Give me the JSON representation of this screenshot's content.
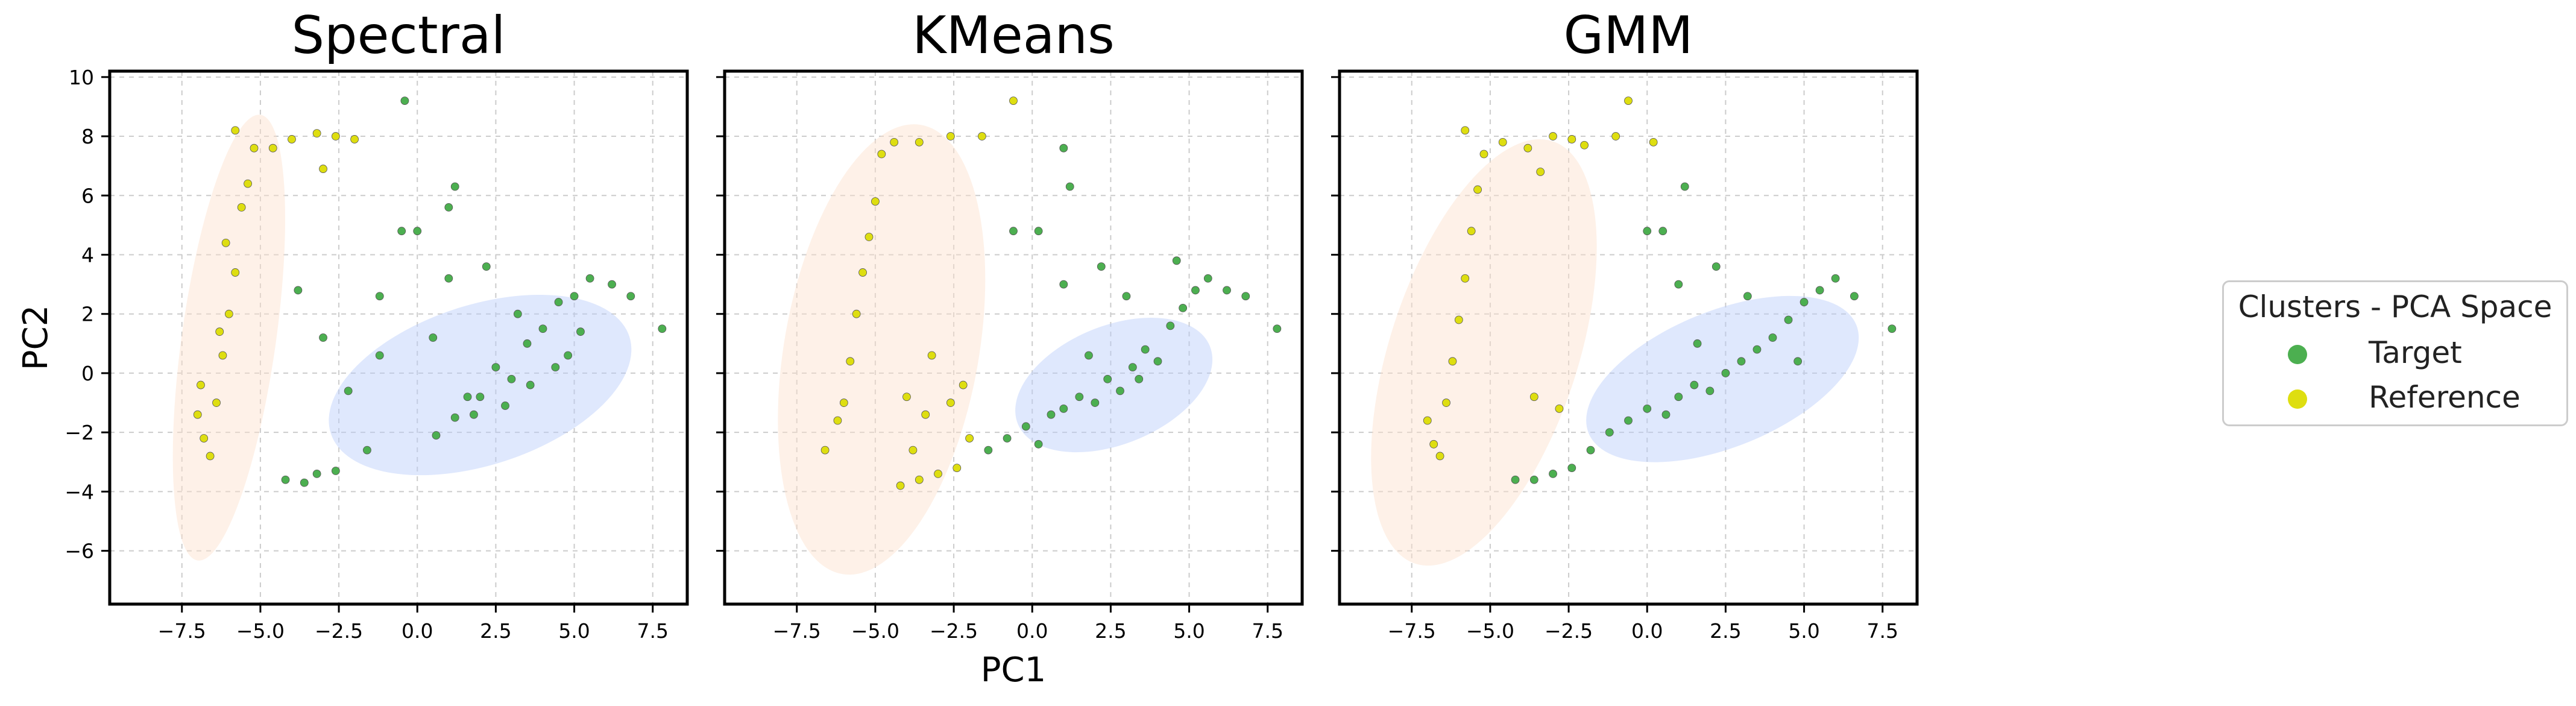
{
  "figure": {
    "xlabel": "PC1",
    "ylabel": "PC2",
    "colors": {
      "Target": "#4caf50",
      "Reference": "#dede10"
    },
    "ellipse_colors": {
      "Target": "#b8cdfa",
      "Reference": "#fde1cb"
    }
  },
  "legend": {
    "title": "Clusters - PCA Space",
    "entries": [
      {
        "label": "Target",
        "color": "#4caf50"
      },
      {
        "label": "Reference",
        "color": "#dede10"
      }
    ]
  },
  "chart_data": [
    {
      "type": "scatter",
      "title": "Spectral",
      "xlim": [
        -9.8,
        8.6
      ],
      "ylim": [
        -7.8,
        10.2
      ],
      "xticks": [
        "−7.5",
        "−5.0",
        "−2.5",
        "0.0",
        "2.5",
        "5.0",
        "7.5"
      ],
      "yticks": [
        "−6",
        "−4",
        "−2",
        "0",
        "2",
        "4",
        "6",
        "8",
        "10"
      ],
      "grid": true,
      "ellipses": [
        {
          "cluster": "Reference",
          "center": [
            -6.0,
            1.2
          ],
          "width": 3.0,
          "height": 15.2,
          "angle": -8
        },
        {
          "cluster": "Target",
          "center": [
            2.0,
            -0.4
          ],
          "width": 10.0,
          "height": 5.4,
          "angle": 18
        }
      ],
      "series": [
        {
          "name": "Target",
          "points": [
            [
              -4.2,
              -3.6
            ],
            [
              -3.6,
              -3.7
            ],
            [
              -3.2,
              -3.4
            ],
            [
              -2.6,
              -3.3
            ],
            [
              -3.8,
              2.8
            ],
            [
              -3.0,
              1.2
            ],
            [
              -2.2,
              -0.6
            ],
            [
              -1.6,
              -2.6
            ],
            [
              -1.2,
              0.6
            ],
            [
              -1.2,
              2.6
            ],
            [
              -0.5,
              4.8
            ],
            [
              0.0,
              4.8
            ],
            [
              0.5,
              1.2
            ],
            [
              1.0,
              3.2
            ],
            [
              1.2,
              -1.5
            ],
            [
              1.6,
              -0.8
            ],
            [
              2.0,
              -0.8
            ],
            [
              2.5,
              0.2
            ],
            [
              3.0,
              -0.2
            ],
            [
              3.5,
              1.0
            ],
            [
              4.0,
              1.5
            ],
            [
              4.5,
              2.4
            ],
            [
              5.0,
              2.6
            ],
            [
              5.5,
              3.2
            ],
            [
              6.2,
              3.0
            ],
            [
              6.8,
              2.6
            ],
            [
              7.8,
              1.5
            ],
            [
              2.2,
              3.6
            ],
            [
              3.2,
              2.0
            ],
            [
              4.8,
              0.6
            ],
            [
              1.0,
              5.6
            ],
            [
              1.2,
              6.3
            ],
            [
              -0.4,
              9.2
            ],
            [
              0.6,
              -2.1
            ],
            [
              1.8,
              -1.4
            ],
            [
              2.8,
              -1.1
            ],
            [
              3.6,
              -0.4
            ],
            [
              4.4,
              0.2
            ],
            [
              5.2,
              1.4
            ]
          ]
        },
        {
          "name": "Reference",
          "points": [
            [
              -7.0,
              -1.4
            ],
            [
              -6.8,
              -2.2
            ],
            [
              -6.6,
              -2.8
            ],
            [
              -6.4,
              -1.0
            ],
            [
              -6.2,
              0.6
            ],
            [
              -6.0,
              2.0
            ],
            [
              -5.8,
              3.4
            ],
            [
              -5.6,
              5.6
            ],
            [
              -5.4,
              6.4
            ],
            [
              -5.2,
              7.6
            ],
            [
              -4.6,
              7.6
            ],
            [
              -4.0,
              7.9
            ],
            [
              -3.2,
              8.1
            ],
            [
              -2.6,
              8.0
            ],
            [
              -2.0,
              7.9
            ],
            [
              -3.0,
              6.9
            ],
            [
              -5.8,
              8.2
            ],
            [
              -6.1,
              4.4
            ],
            [
              -6.3,
              1.4
            ],
            [
              -6.9,
              -0.4
            ]
          ]
        }
      ]
    },
    {
      "type": "scatter",
      "title": "KMeans",
      "xlim": [
        -9.8,
        8.6
      ],
      "ylim": [
        -7.8,
        10.2
      ],
      "xticks": [
        "−7.5",
        "−5.0",
        "−2.5",
        "0.0",
        "2.5",
        "5.0",
        "7.5"
      ],
      "yticks": [
        "−6",
        "−4",
        "−2",
        "0",
        "2",
        "4",
        "6",
        "8",
        "10"
      ],
      "grid": true,
      "ellipses": [
        {
          "cluster": "Reference",
          "center": [
            -4.8,
            0.8
          ],
          "width": 6.2,
          "height": 15.4,
          "angle": -10
        },
        {
          "cluster": "Target",
          "center": [
            2.6,
            -0.4
          ],
          "width": 6.6,
          "height": 4.0,
          "angle": 22
        }
      ],
      "series": [
        {
          "name": "Target",
          "points": [
            [
              -1.4,
              -2.6
            ],
            [
              -0.8,
              -2.2
            ],
            [
              -0.2,
              -1.8
            ],
            [
              0.2,
              -2.4
            ],
            [
              0.6,
              -1.4
            ],
            [
              1.0,
              -1.2
            ],
            [
              1.5,
              -0.8
            ],
            [
              2.0,
              -1.0
            ],
            [
              2.4,
              -0.2
            ],
            [
              2.8,
              -0.6
            ],
            [
              3.2,
              0.2
            ],
            [
              3.6,
              0.8
            ],
            [
              4.0,
              0.4
            ],
            [
              4.4,
              1.6
            ],
            [
              4.8,
              2.2
            ],
            [
              5.2,
              2.8
            ],
            [
              5.6,
              3.2
            ],
            [
              6.2,
              2.8
            ],
            [
              6.8,
              2.6
            ],
            [
              7.8,
              1.5
            ],
            [
              1.0,
              3.0
            ],
            [
              1.2,
              6.3
            ],
            [
              1.0,
              7.6
            ],
            [
              0.2,
              4.8
            ],
            [
              -0.6,
              4.8
            ],
            [
              2.2,
              3.6
            ],
            [
              3.0,
              2.6
            ],
            [
              4.6,
              3.8
            ],
            [
              1.8,
              0.6
            ],
            [
              3.4,
              -0.2
            ]
          ]
        },
        {
          "name": "Reference",
          "points": [
            [
              -6.6,
              -2.6
            ],
            [
              -6.2,
              -1.6
            ],
            [
              -6.0,
              -1.0
            ],
            [
              -5.8,
              0.4
            ],
            [
              -5.6,
              2.0
            ],
            [
              -5.4,
              3.4
            ],
            [
              -5.2,
              4.6
            ],
            [
              -5.0,
              5.8
            ],
            [
              -4.8,
              7.4
            ],
            [
              -4.4,
              7.8
            ],
            [
              -3.6,
              7.8
            ],
            [
              -2.6,
              8.0
            ],
            [
              -1.6,
              8.0
            ],
            [
              -0.6,
              9.2
            ],
            [
              -4.2,
              -3.8
            ],
            [
              -3.6,
              -3.6
            ],
            [
              -3.0,
              -3.4
            ],
            [
              -2.4,
              -3.2
            ],
            [
              -4.0,
              -0.8
            ],
            [
              -3.4,
              -1.4
            ],
            [
              -2.6,
              -1.0
            ],
            [
              -2.0,
              -2.2
            ],
            [
              -3.2,
              0.6
            ],
            [
              -2.2,
              -0.4
            ],
            [
              -3.8,
              -2.6
            ]
          ]
        }
      ]
    },
    {
      "type": "scatter",
      "title": "GMM",
      "xlim": [
        -9.8,
        8.6
      ],
      "ylim": [
        -7.8,
        10.2
      ],
      "xticks": [
        "−7.5",
        "−5.0",
        "−2.5",
        "0.0",
        "2.5",
        "5.0",
        "7.5"
      ],
      "yticks": [
        "−6",
        "−4",
        "−2",
        "0",
        "2",
        "4",
        "6",
        "8",
        "10"
      ],
      "grid": true,
      "ellipses": [
        {
          "cluster": "Reference",
          "center": [
            -5.2,
            0.7
          ],
          "width": 6.0,
          "height": 15.0,
          "angle": -18
        },
        {
          "cluster": "Target",
          "center": [
            2.4,
            -0.2
          ],
          "width": 9.2,
          "height": 4.6,
          "angle": 22
        }
      ],
      "series": [
        {
          "name": "Target",
          "points": [
            [
              -4.2,
              -3.6
            ],
            [
              -3.6,
              -3.6
            ],
            [
              -3.0,
              -3.4
            ],
            [
              -2.4,
              -3.2
            ],
            [
              -1.8,
              -2.6
            ],
            [
              -1.2,
              -2.0
            ],
            [
              -0.6,
              -1.6
            ],
            [
              0.0,
              -1.2
            ],
            [
              0.6,
              -1.4
            ],
            [
              1.0,
              -0.8
            ],
            [
              1.5,
              -0.4
            ],
            [
              2.0,
              -0.6
            ],
            [
              2.5,
              0.0
            ],
            [
              3.0,
              0.4
            ],
            [
              3.5,
              0.8
            ],
            [
              4.0,
              1.2
            ],
            [
              4.5,
              1.8
            ],
            [
              5.0,
              2.4
            ],
            [
              5.5,
              2.8
            ],
            [
              6.0,
              3.2
            ],
            [
              6.6,
              2.6
            ],
            [
              7.8,
              1.5
            ],
            [
              0.0,
              4.8
            ],
            [
              0.5,
              4.8
            ],
            [
              1.0,
              3.0
            ],
            [
              1.2,
              6.3
            ],
            [
              2.2,
              3.6
            ],
            [
              3.2,
              2.6
            ],
            [
              4.8,
              0.4
            ],
            [
              1.6,
              1.0
            ]
          ]
        },
        {
          "name": "Reference",
          "points": [
            [
              -7.0,
              -1.6
            ],
            [
              -6.8,
              -2.4
            ],
            [
              -6.6,
              -2.8
            ],
            [
              -6.4,
              -1.0
            ],
            [
              -6.2,
              0.4
            ],
            [
              -6.0,
              1.8
            ],
            [
              -5.8,
              3.2
            ],
            [
              -5.6,
              4.8
            ],
            [
              -5.4,
              6.2
            ],
            [
              -5.2,
              7.4
            ],
            [
              -4.6,
              7.8
            ],
            [
              -3.8,
              7.6
            ],
            [
              -3.0,
              8.0
            ],
            [
              -2.4,
              7.9
            ],
            [
              -2.0,
              7.7
            ],
            [
              -3.4,
              6.8
            ],
            [
              -5.8,
              8.2
            ],
            [
              -0.6,
              9.2
            ],
            [
              0.2,
              7.8
            ],
            [
              -1.0,
              8.0
            ],
            [
              -3.6,
              -0.8
            ],
            [
              -2.8,
              -1.2
            ]
          ]
        }
      ]
    }
  ]
}
